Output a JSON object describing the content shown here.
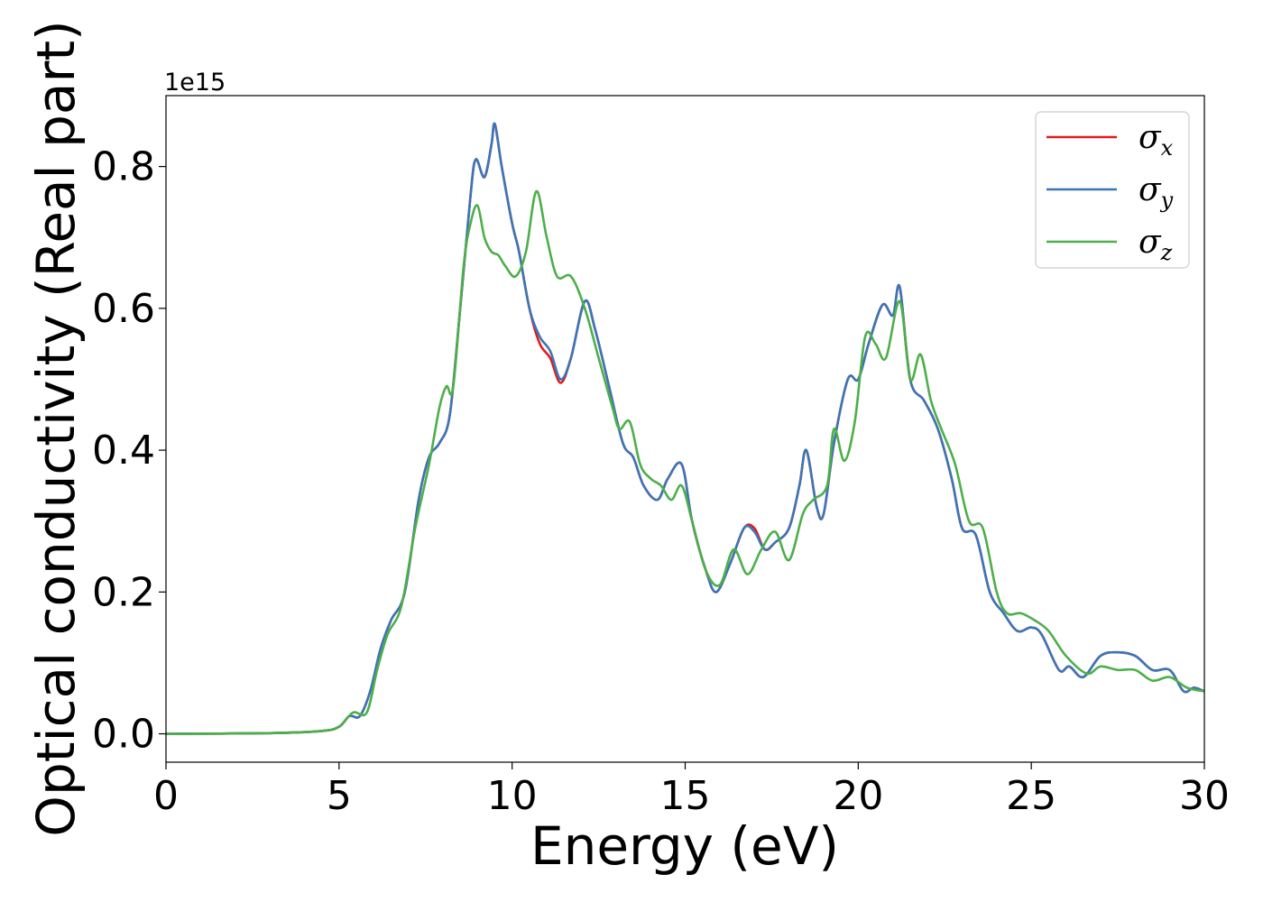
{
  "chart_data": {
    "type": "line",
    "xlabel": "Energy (eV)",
    "ylabel": "Optical conductivity (Real part)",
    "y_offset_label": "1e15",
    "xlim": [
      0,
      30
    ],
    "ylim": [
      -0.04,
      0.9
    ],
    "y_multiplier": 1000000000000000.0,
    "xticks": [
      0,
      5,
      10,
      15,
      20,
      25,
      30
    ],
    "xtick_labels": [
      "0",
      "5",
      "10",
      "15",
      "20",
      "25",
      "30"
    ],
    "yticks": [
      0.0,
      0.2,
      0.4,
      0.6,
      0.8
    ],
    "ytick_labels": [
      "0.0",
      "0.2",
      "0.4",
      "0.6",
      "0.8"
    ],
    "grid": false,
    "legend_position": "top-right",
    "series": [
      {
        "name": "σx",
        "symbol": "σ",
        "sub": "x",
        "color": "#e41a1c",
        "points": [
          [
            0,
            0
          ],
          [
            3,
            0.001
          ],
          [
            4.5,
            0.004
          ],
          [
            5,
            0.01
          ],
          [
            5.3,
            0.025
          ],
          [
            5.6,
            0.025
          ],
          [
            5.9,
            0.06
          ],
          [
            6.2,
            0.12
          ],
          [
            6.5,
            0.16
          ],
          [
            6.9,
            0.2
          ],
          [
            7.3,
            0.33
          ],
          [
            7.6,
            0.39
          ],
          [
            7.9,
            0.41
          ],
          [
            8.2,
            0.45
          ],
          [
            8.5,
            0.6
          ],
          [
            8.8,
            0.76
          ],
          [
            8.95,
            0.81
          ],
          [
            9.2,
            0.785
          ],
          [
            9.4,
            0.83
          ],
          [
            9.5,
            0.86
          ],
          [
            9.7,
            0.8
          ],
          [
            10,
            0.72
          ],
          [
            10.2,
            0.68
          ],
          [
            10.5,
            0.6
          ],
          [
            10.8,
            0.55
          ],
          [
            11.1,
            0.53
          ],
          [
            11.4,
            0.495
          ],
          [
            11.7,
            0.53
          ],
          [
            12.1,
            0.61
          ],
          [
            12.4,
            0.57
          ],
          [
            12.8,
            0.49
          ],
          [
            13.2,
            0.41
          ],
          [
            13.5,
            0.39
          ],
          [
            13.8,
            0.35
          ],
          [
            14.2,
            0.33
          ],
          [
            14.5,
            0.36
          ],
          [
            14.9,
            0.38
          ],
          [
            15.2,
            0.3
          ],
          [
            15.6,
            0.23
          ],
          [
            15.9,
            0.2
          ],
          [
            16.3,
            0.24
          ],
          [
            16.7,
            0.29
          ],
          [
            17,
            0.29
          ],
          [
            17.3,
            0.26
          ],
          [
            17.6,
            0.27
          ],
          [
            18,
            0.29
          ],
          [
            18.3,
            0.35
          ],
          [
            18.5,
            0.4
          ],
          [
            18.8,
            0.32
          ],
          [
            19,
            0.31
          ],
          [
            19.3,
            0.41
          ],
          [
            19.7,
            0.5
          ],
          [
            20,
            0.5
          ],
          [
            20.3,
            0.55
          ],
          [
            20.7,
            0.605
          ],
          [
            21,
            0.59
          ],
          [
            21.2,
            0.63
          ],
          [
            21.5,
            0.5
          ],
          [
            21.9,
            0.47
          ],
          [
            22.3,
            0.43
          ],
          [
            22.7,
            0.36
          ],
          [
            23,
            0.29
          ],
          [
            23.4,
            0.28
          ],
          [
            23.8,
            0.2
          ],
          [
            24.2,
            0.17
          ],
          [
            24.6,
            0.145
          ],
          [
            25,
            0.15
          ],
          [
            25.3,
            0.14
          ],
          [
            25.8,
            0.09
          ],
          [
            26.1,
            0.095
          ],
          [
            26.5,
            0.08
          ],
          [
            27,
            0.11
          ],
          [
            27.5,
            0.115
          ],
          [
            28,
            0.11
          ],
          [
            28.5,
            0.09
          ],
          [
            29,
            0.09
          ],
          [
            29.4,
            0.06
          ],
          [
            29.7,
            0.065
          ],
          [
            30,
            0.06
          ]
        ]
      },
      {
        "name": "σy",
        "symbol": "σ",
        "sub": "y",
        "color": "#3a76b8",
        "points": [
          [
            0,
            0
          ],
          [
            3,
            0.001
          ],
          [
            4.5,
            0.004
          ],
          [
            5,
            0.01
          ],
          [
            5.3,
            0.025
          ],
          [
            5.6,
            0.025
          ],
          [
            5.9,
            0.06
          ],
          [
            6.2,
            0.12
          ],
          [
            6.5,
            0.16
          ],
          [
            6.9,
            0.2
          ],
          [
            7.3,
            0.33
          ],
          [
            7.6,
            0.39
          ],
          [
            7.9,
            0.41
          ],
          [
            8.2,
            0.45
          ],
          [
            8.5,
            0.6
          ],
          [
            8.8,
            0.76
          ],
          [
            8.95,
            0.81
          ],
          [
            9.2,
            0.785
          ],
          [
            9.4,
            0.83
          ],
          [
            9.5,
            0.86
          ],
          [
            9.7,
            0.8
          ],
          [
            10,
            0.72
          ],
          [
            10.2,
            0.68
          ],
          [
            10.5,
            0.6
          ],
          [
            10.8,
            0.56
          ],
          [
            11.1,
            0.54
          ],
          [
            11.4,
            0.5
          ],
          [
            11.7,
            0.53
          ],
          [
            12.1,
            0.61
          ],
          [
            12.4,
            0.57
          ],
          [
            12.8,
            0.49
          ],
          [
            13.2,
            0.41
          ],
          [
            13.5,
            0.39
          ],
          [
            13.8,
            0.35
          ],
          [
            14.2,
            0.33
          ],
          [
            14.5,
            0.36
          ],
          [
            14.9,
            0.38
          ],
          [
            15.2,
            0.3
          ],
          [
            15.6,
            0.23
          ],
          [
            15.9,
            0.2
          ],
          [
            16.3,
            0.24
          ],
          [
            16.7,
            0.29
          ],
          [
            17,
            0.285
          ],
          [
            17.3,
            0.26
          ],
          [
            17.6,
            0.27
          ],
          [
            18,
            0.29
          ],
          [
            18.3,
            0.35
          ],
          [
            18.5,
            0.4
          ],
          [
            18.8,
            0.32
          ],
          [
            19,
            0.31
          ],
          [
            19.3,
            0.41
          ],
          [
            19.7,
            0.5
          ],
          [
            20,
            0.5
          ],
          [
            20.3,
            0.55
          ],
          [
            20.7,
            0.605
          ],
          [
            21,
            0.59
          ],
          [
            21.2,
            0.63
          ],
          [
            21.5,
            0.5
          ],
          [
            21.9,
            0.47
          ],
          [
            22.3,
            0.43
          ],
          [
            22.7,
            0.36
          ],
          [
            23,
            0.29
          ],
          [
            23.4,
            0.28
          ],
          [
            23.8,
            0.2
          ],
          [
            24.2,
            0.17
          ],
          [
            24.6,
            0.145
          ],
          [
            25,
            0.15
          ],
          [
            25.3,
            0.14
          ],
          [
            25.8,
            0.09
          ],
          [
            26.1,
            0.095
          ],
          [
            26.5,
            0.08
          ],
          [
            27,
            0.11
          ],
          [
            27.5,
            0.115
          ],
          [
            28,
            0.11
          ],
          [
            28.5,
            0.09
          ],
          [
            29,
            0.09
          ],
          [
            29.4,
            0.06
          ],
          [
            29.7,
            0.065
          ],
          [
            30,
            0.06
          ]
        ]
      },
      {
        "name": "σz",
        "symbol": "σ",
        "sub": "z",
        "color": "#4daf4a",
        "points": [
          [
            0,
            0
          ],
          [
            3,
            0.001
          ],
          [
            4.5,
            0.004
          ],
          [
            5,
            0.01
          ],
          [
            5.4,
            0.03
          ],
          [
            5.8,
            0.03
          ],
          [
            6.1,
            0.09
          ],
          [
            6.4,
            0.14
          ],
          [
            6.8,
            0.18
          ],
          [
            7.2,
            0.29
          ],
          [
            7.6,
            0.38
          ],
          [
            7.9,
            0.46
          ],
          [
            8.1,
            0.49
          ],
          [
            8.3,
            0.49
          ],
          [
            8.6,
            0.66
          ],
          [
            8.8,
            0.72
          ],
          [
            9,
            0.745
          ],
          [
            9.2,
            0.7
          ],
          [
            9.4,
            0.68
          ],
          [
            9.6,
            0.675
          ],
          [
            9.8,
            0.66
          ],
          [
            10.1,
            0.645
          ],
          [
            10.4,
            0.68
          ],
          [
            10.7,
            0.765
          ],
          [
            11,
            0.7
          ],
          [
            11.3,
            0.645
          ],
          [
            11.7,
            0.645
          ],
          [
            12.1,
            0.6
          ],
          [
            12.5,
            0.53
          ],
          [
            12.9,
            0.46
          ],
          [
            13.1,
            0.43
          ],
          [
            13.4,
            0.44
          ],
          [
            13.7,
            0.38
          ],
          [
            14,
            0.36
          ],
          [
            14.3,
            0.35
          ],
          [
            14.6,
            0.33
          ],
          [
            14.9,
            0.35
          ],
          [
            15.2,
            0.3
          ],
          [
            15.6,
            0.23
          ],
          [
            16,
            0.21
          ],
          [
            16.4,
            0.26
          ],
          [
            16.8,
            0.225
          ],
          [
            17.2,
            0.26
          ],
          [
            17.6,
            0.285
          ],
          [
            18,
            0.245
          ],
          [
            18.4,
            0.31
          ],
          [
            18.7,
            0.33
          ],
          [
            19.1,
            0.35
          ],
          [
            19.3,
            0.43
          ],
          [
            19.6,
            0.385
          ],
          [
            19.9,
            0.44
          ],
          [
            20.2,
            0.56
          ],
          [
            20.5,
            0.55
          ],
          [
            20.8,
            0.53
          ],
          [
            21.2,
            0.61
          ],
          [
            21.5,
            0.5
          ],
          [
            21.8,
            0.535
          ],
          [
            22.1,
            0.47
          ],
          [
            22.4,
            0.43
          ],
          [
            22.8,
            0.38
          ],
          [
            23.2,
            0.3
          ],
          [
            23.6,
            0.29
          ],
          [
            24,
            0.2
          ],
          [
            24.3,
            0.17
          ],
          [
            24.7,
            0.17
          ],
          [
            25.1,
            0.16
          ],
          [
            25.5,
            0.145
          ],
          [
            26,
            0.11
          ],
          [
            26.6,
            0.085
          ],
          [
            27,
            0.095
          ],
          [
            27.5,
            0.09
          ],
          [
            28,
            0.09
          ],
          [
            28.5,
            0.075
          ],
          [
            29,
            0.08
          ],
          [
            29.5,
            0.065
          ],
          [
            30,
            0.06
          ]
        ]
      }
    ]
  }
}
